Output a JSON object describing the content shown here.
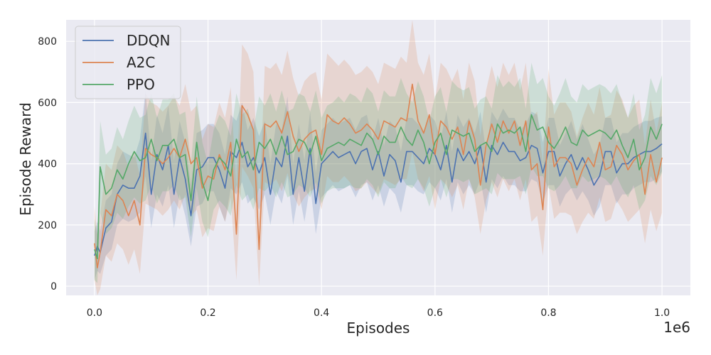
{
  "chart_data": {
    "type": "line",
    "title": "",
    "xlabel": "Episodes",
    "ylabel": "Episode Reward",
    "x_offset_label": "1e6",
    "xlim": [
      -0.05,
      1.05
    ],
    "ylim": [
      -30,
      870
    ],
    "x_ticks": [
      0.0,
      0.2,
      0.4,
      0.6,
      0.8,
      1.0
    ],
    "x_tick_labels": [
      "0.0",
      "0.2",
      "0.4",
      "0.6",
      "0.8",
      "1.0"
    ],
    "y_ticks": [
      0,
      200,
      400,
      600,
      800
    ],
    "y_tick_labels": [
      "0",
      "200",
      "400",
      "600",
      "800"
    ],
    "grid": true,
    "background": "#eaeaf2",
    "legend": "top-left",
    "series": [
      {
        "name": "DDQN",
        "color": "#4c72b0",
        "x": [
          0.0,
          0.005,
          0.01,
          0.02,
          0.03,
          0.04,
          0.05,
          0.06,
          0.07,
          0.08,
          0.09,
          0.1,
          0.11,
          0.12,
          0.13,
          0.14,
          0.15,
          0.16,
          0.17,
          0.18,
          0.19,
          0.2,
          0.21,
          0.22,
          0.23,
          0.24,
          0.25,
          0.26,
          0.27,
          0.28,
          0.29,
          0.3,
          0.31,
          0.32,
          0.33,
          0.34,
          0.35,
          0.36,
          0.37,
          0.38,
          0.39,
          0.4,
          0.41,
          0.42,
          0.43,
          0.44,
          0.45,
          0.46,
          0.47,
          0.48,
          0.49,
          0.5,
          0.51,
          0.52,
          0.53,
          0.54,
          0.55,
          0.56,
          0.57,
          0.58,
          0.59,
          0.6,
          0.61,
          0.62,
          0.63,
          0.64,
          0.65,
          0.66,
          0.67,
          0.68,
          0.69,
          0.7,
          0.71,
          0.72,
          0.73,
          0.74,
          0.75,
          0.76,
          0.77,
          0.78,
          0.79,
          0.8,
          0.81,
          0.82,
          0.83,
          0.84,
          0.85,
          0.86,
          0.87,
          0.88,
          0.89,
          0.9,
          0.91,
          0.92,
          0.93,
          0.94,
          0.95,
          0.96,
          0.97,
          0.98,
          0.99,
          1.0
        ],
        "y": [
          100,
          130,
          110,
          190,
          210,
          300,
          330,
          320,
          320,
          360,
          500,
          300,
          430,
          380,
          460,
          300,
          420,
          350,
          230,
          380,
          390,
          420,
          420,
          380,
          320,
          440,
          420,
          470,
          390,
          420,
          370,
          420,
          300,
          420,
          390,
          490,
          300,
          420,
          310,
          450,
          270,
          400,
          420,
          440,
          420,
          430,
          440,
          400,
          440,
          450,
          380,
          440,
          360,
          430,
          410,
          340,
          440,
          440,
          420,
          400,
          450,
          430,
          380,
          460,
          340,
          450,
          410,
          440,
          400,
          460,
          340,
          460,
          430,
          470,
          440,
          440,
          410,
          420,
          460,
          450,
          370,
          440,
          440,
          360,
          400,
          430,
          380,
          420,
          380,
          330,
          360,
          440,
          440,
          370,
          400,
          400,
          420,
          430,
          440,
          440,
          450,
          465
        ],
        "band": [
          80,
          80,
          70,
          90,
          90,
          100,
          110,
          110,
          100,
          120,
          140,
          110,
          130,
          120,
          130,
          110,
          120,
          120,
          100,
          120,
          120,
          110,
          110,
          120,
          110,
          120,
          120,
          130,
          120,
          130,
          120,
          120,
          100,
          110,
          120,
          130,
          100,
          110,
          100,
          120,
          100,
          110,
          110,
          110,
          110,
          110,
          110,
          110,
          110,
          110,
          100,
          110,
          100,
          110,
          110,
          100,
          110,
          110,
          110,
          100,
          110,
          110,
          100,
          110,
          100,
          110,
          110,
          110,
          100,
          110,
          100,
          110,
          110,
          110,
          110,
          110,
          100,
          110,
          110,
          110,
          100,
          110,
          110,
          100,
          100,
          110,
          100,
          110,
          100,
          100,
          100,
          110,
          110,
          100,
          100,
          100,
          100,
          100,
          100,
          100,
          100,
          90
        ]
      },
      {
        "name": "A2C",
        "color": "#dd8452",
        "x": [
          0.0,
          0.005,
          0.01,
          0.02,
          0.03,
          0.04,
          0.05,
          0.06,
          0.07,
          0.08,
          0.09,
          0.1,
          0.11,
          0.12,
          0.13,
          0.14,
          0.15,
          0.16,
          0.17,
          0.18,
          0.19,
          0.2,
          0.21,
          0.22,
          0.23,
          0.24,
          0.25,
          0.26,
          0.27,
          0.28,
          0.29,
          0.3,
          0.31,
          0.32,
          0.33,
          0.34,
          0.35,
          0.36,
          0.37,
          0.38,
          0.39,
          0.4,
          0.41,
          0.42,
          0.43,
          0.44,
          0.45,
          0.46,
          0.47,
          0.48,
          0.49,
          0.5,
          0.51,
          0.52,
          0.53,
          0.54,
          0.55,
          0.56,
          0.57,
          0.58,
          0.59,
          0.6,
          0.61,
          0.62,
          0.63,
          0.64,
          0.65,
          0.66,
          0.67,
          0.68,
          0.69,
          0.7,
          0.71,
          0.72,
          0.73,
          0.74,
          0.75,
          0.76,
          0.77,
          0.78,
          0.79,
          0.8,
          0.81,
          0.82,
          0.83,
          0.84,
          0.85,
          0.86,
          0.87,
          0.88,
          0.89,
          0.9,
          0.91,
          0.92,
          0.93,
          0.94,
          0.95,
          0.96,
          0.97,
          0.98,
          0.99,
          1.0
        ],
        "y": [
          140,
          60,
          110,
          250,
          230,
          300,
          280,
          230,
          280,
          200,
          450,
          430,
          420,
          400,
          420,
          450,
          420,
          480,
          400,
          420,
          320,
          360,
          350,
          430,
          380,
          470,
          170,
          590,
          560,
          510,
          120,
          530,
          520,
          540,
          500,
          570,
          490,
          440,
          480,
          500,
          510,
          430,
          560,
          540,
          530,
          550,
          530,
          500,
          510,
          530,
          510,
          480,
          540,
          530,
          520,
          550,
          540,
          660,
          540,
          500,
          560,
          430,
          540,
          520,
          480,
          520,
          430,
          540,
          480,
          330,
          460,
          530,
          470,
          540,
          500,
          540,
          460,
          540,
          380,
          400,
          250,
          520,
          390,
          420,
          420,
          400,
          330,
          380,
          420,
          390,
          470,
          380,
          390,
          460,
          430,
          380,
          410,
          430,
          300,
          430,
          340,
          420
        ],
        "band": [
          120,
          110,
          120,
          150,
          150,
          160,
          160,
          160,
          160,
          160,
          180,
          170,
          170,
          170,
          170,
          170,
          170,
          180,
          170,
          170,
          160,
          170,
          170,
          170,
          170,
          180,
          150,
          200,
          200,
          190,
          120,
          190,
          190,
          190,
          190,
          200,
          190,
          180,
          190,
          190,
          190,
          180,
          200,
          200,
          190,
          190,
          190,
          190,
          190,
          190,
          190,
          180,
          190,
          190,
          190,
          200,
          190,
          220,
          190,
          190,
          200,
          180,
          190,
          190,
          190,
          190,
          180,
          190,
          190,
          160,
          180,
          190,
          180,
          190,
          190,
          190,
          180,
          190,
          170,
          170,
          150,
          190,
          170,
          180,
          180,
          170,
          160,
          170,
          180,
          170,
          180,
          170,
          170,
          180,
          180,
          170,
          180,
          180,
          160,
          180,
          160,
          180
        ]
      },
      {
        "name": "PPO",
        "color": "#55a868",
        "x": [
          0.0,
          0.005,
          0.01,
          0.02,
          0.03,
          0.04,
          0.05,
          0.06,
          0.07,
          0.08,
          0.09,
          0.1,
          0.11,
          0.12,
          0.13,
          0.14,
          0.15,
          0.16,
          0.17,
          0.18,
          0.19,
          0.2,
          0.21,
          0.22,
          0.23,
          0.24,
          0.25,
          0.26,
          0.27,
          0.28,
          0.29,
          0.3,
          0.31,
          0.32,
          0.33,
          0.34,
          0.35,
          0.36,
          0.37,
          0.38,
          0.39,
          0.4,
          0.41,
          0.42,
          0.43,
          0.44,
          0.45,
          0.46,
          0.47,
          0.48,
          0.49,
          0.5,
          0.51,
          0.52,
          0.53,
          0.54,
          0.55,
          0.56,
          0.57,
          0.58,
          0.59,
          0.6,
          0.61,
          0.62,
          0.63,
          0.64,
          0.65,
          0.66,
          0.67,
          0.68,
          0.69,
          0.7,
          0.71,
          0.72,
          0.73,
          0.74,
          0.75,
          0.76,
          0.77,
          0.78,
          0.79,
          0.8,
          0.81,
          0.82,
          0.83,
          0.84,
          0.85,
          0.86,
          0.87,
          0.88,
          0.89,
          0.9,
          0.91,
          0.92,
          0.93,
          0.94,
          0.95,
          0.96,
          0.97,
          0.98,
          0.99,
          1.0
        ],
        "y": [
          120,
          90,
          390,
          300,
          320,
          380,
          350,
          400,
          440,
          410,
          420,
          480,
          410,
          460,
          460,
          480,
          420,
          430,
          280,
          470,
          340,
          280,
          380,
          420,
          400,
          360,
          480,
          420,
          440,
          380,
          470,
          450,
          480,
          430,
          490,
          430,
          440,
          480,
          470,
          430,
          490,
          410,
          450,
          460,
          470,
          460,
          480,
          470,
          460,
          500,
          480,
          430,
          490,
          470,
          470,
          520,
          480,
          460,
          510,
          470,
          400,
          470,
          500,
          430,
          510,
          500,
          490,
          500,
          440,
          460,
          470,
          440,
          530,
          500,
          510,
          500,
          520,
          440,
          560,
          510,
          520,
          470,
          450,
          480,
          520,
          470,
          460,
          510,
          490,
          500,
          510,
          500,
          480,
          510,
          460,
          420,
          480,
          380,
          420,
          520,
          480,
          530
        ],
        "band": [
          100,
          80,
          150,
          130,
          130,
          140,
          130,
          140,
          150,
          140,
          140,
          150,
          140,
          150,
          150,
          150,
          140,
          140,
          120,
          150,
          130,
          120,
          130,
          140,
          140,
          130,
          150,
          140,
          140,
          130,
          150,
          140,
          150,
          140,
          150,
          140,
          140,
          150,
          150,
          140,
          150,
          140,
          140,
          140,
          150,
          140,
          150,
          150,
          140,
          150,
          150,
          140,
          150,
          150,
          150,
          160,
          150,
          140,
          160,
          150,
          140,
          150,
          150,
          140,
          160,
          150,
          150,
          150,
          140,
          150,
          150,
          140,
          160,
          150,
          160,
          150,
          160,
          140,
          170,
          150,
          160,
          150,
          140,
          150,
          160,
          150,
          140,
          150,
          150,
          150,
          150,
          150,
          150,
          150,
          140,
          130,
          150,
          130,
          140,
          160,
          150,
          160
        ]
      }
    ]
  }
}
